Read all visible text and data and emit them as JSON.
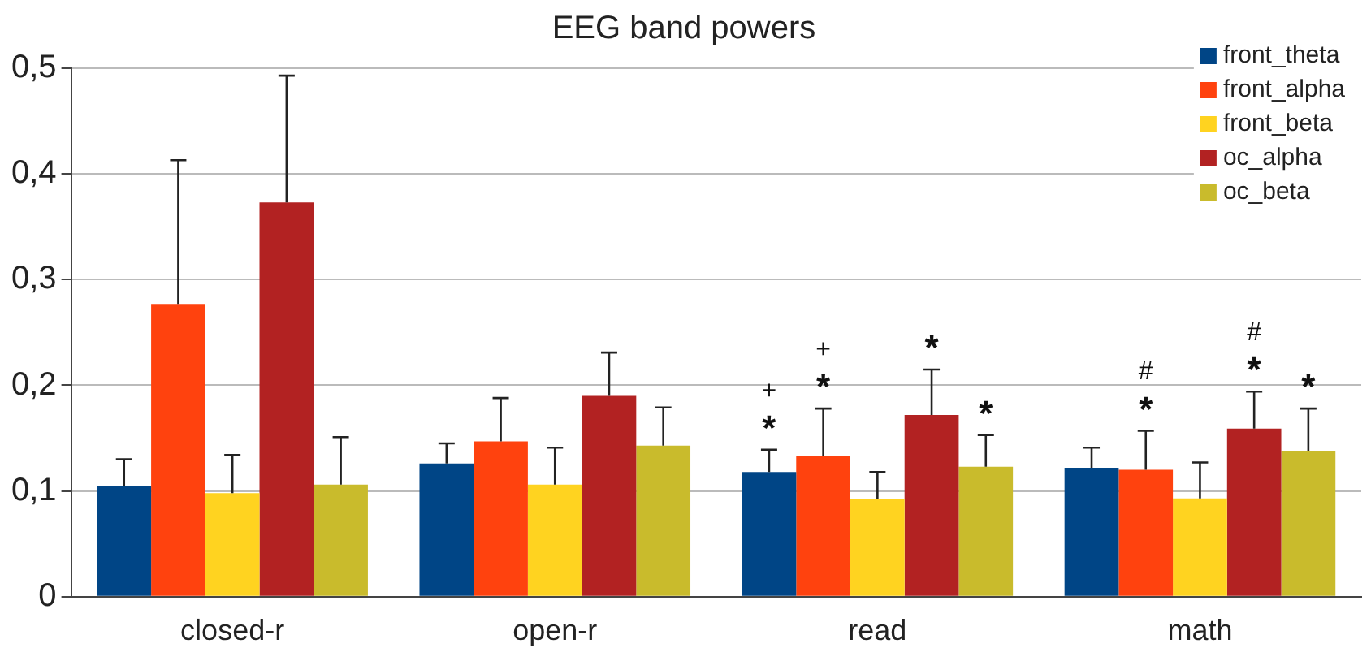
{
  "chart_data": {
    "type": "bar",
    "title": "EEG band powers",
    "categories": [
      "closed-r",
      "open-r",
      "read",
      "math"
    ],
    "series": [
      {
        "name": "front_theta",
        "color": "#004586",
        "values": [
          0.105,
          0.126,
          0.118,
          0.122
        ],
        "errors": [
          [
            0.105,
            0.13
          ],
          [
            0.126,
            0.145
          ],
          [
            0.118,
            0.139
          ],
          [
            0.122,
            0.141
          ]
        ]
      },
      {
        "name": "front_alpha",
        "color": "#ff420e",
        "values": [
          0.277,
          0.147,
          0.133,
          0.12
        ],
        "errors": [
          [
            0.277,
            0.413
          ],
          [
            0.147,
            0.188
          ],
          [
            0.133,
            0.178
          ],
          [
            0.12,
            0.157
          ]
        ]
      },
      {
        "name": "front_beta",
        "color": "#ffd320",
        "values": [
          0.098,
          0.106,
          0.092,
          0.093
        ],
        "errors": [
          [
            0.098,
            0.134
          ],
          [
            0.106,
            0.141
          ],
          [
            0.092,
            0.118
          ],
          [
            0.093,
            0.127
          ]
        ]
      },
      {
        "name": "oc_alpha",
        "color": "#b22222",
        "values": [
          0.373,
          0.19,
          0.172,
          0.159
        ],
        "errors": [
          [
            0.373,
            0.493
          ],
          [
            0.19,
            0.231
          ],
          [
            0.172,
            0.215
          ],
          [
            0.159,
            0.194
          ]
        ]
      },
      {
        "name": "oc_beta",
        "color": "#c9bb2c",
        "values": [
          0.106,
          0.143,
          0.123,
          0.138
        ],
        "errors": [
          [
            0.106,
            0.151
          ],
          [
            0.143,
            0.179
          ],
          [
            0.123,
            0.153
          ],
          [
            0.138,
            0.178
          ]
        ]
      }
    ],
    "ylim": [
      0,
      0.5
    ],
    "yticks": [
      0,
      {
        "value": 0.1,
        "label": "0,1"
      },
      {
        "value": 0.2,
        "label": "0,2"
      },
      {
        "value": 0.3,
        "label": "0,3"
      },
      {
        "value": 0.4,
        "label": "0,4"
      },
      {
        "value": 0.5,
        "label": "0,5"
      }
    ],
    "grid": "y",
    "legend": "top right",
    "annotations": [
      "*",
      "+",
      "*",
      "+",
      "*",
      "*",
      "*",
      "#",
      "*",
      "#",
      "*"
    ]
  }
}
